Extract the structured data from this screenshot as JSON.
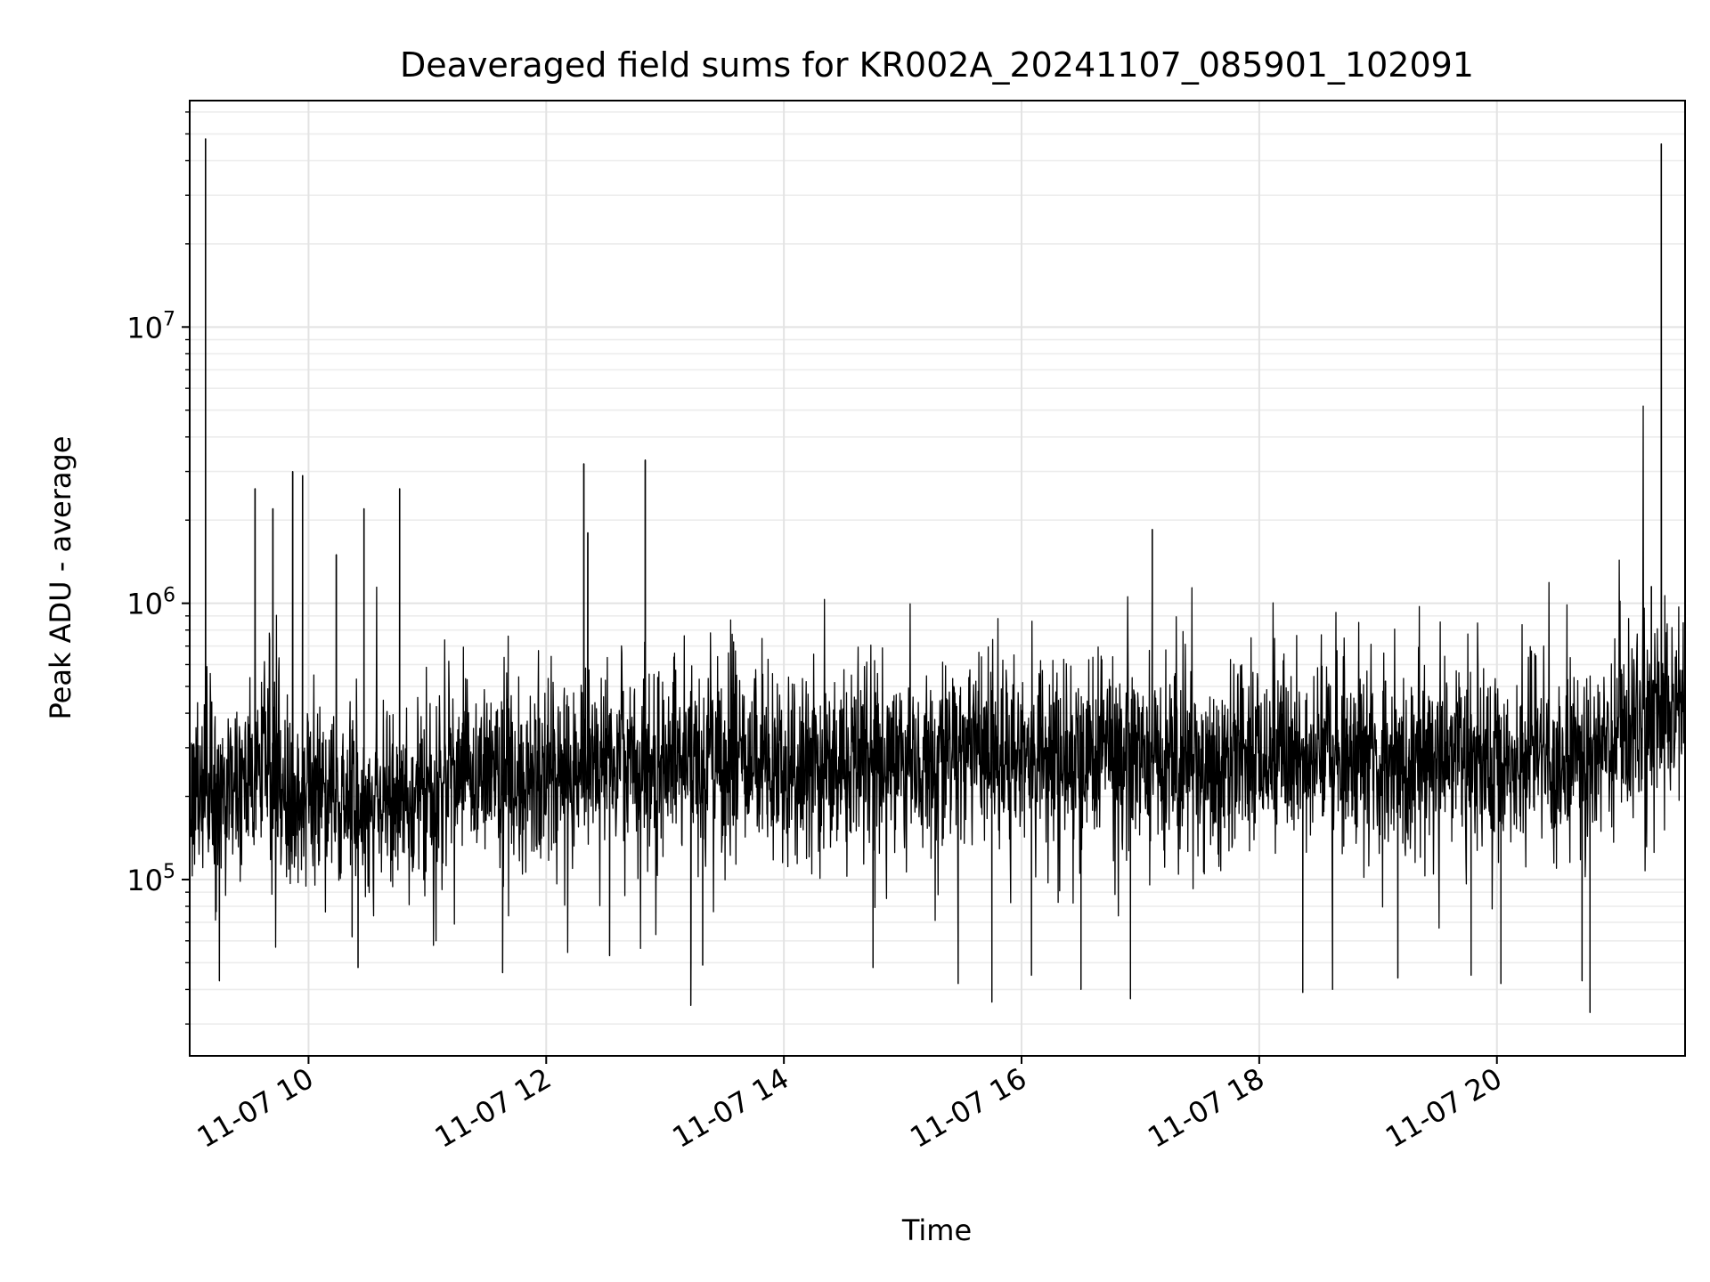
{
  "chart_data": {
    "type": "line",
    "title": "Deaveraged field sums for KR002A_20241107_085901_102091",
    "xlabel": "Time",
    "ylabel": "Peak ADU - average",
    "y_scale": "log",
    "grid": "on (major and minor)",
    "line_color": "#000000",
    "xlim": [
      "2024-11-07 09:00",
      "2024-11-07 21:35"
    ],
    "ylim": [
      23000,
      66000000
    ],
    "x_ticks": [
      {
        "value": "2024-11-07 10:00",
        "label": "11-07 10"
      },
      {
        "value": "2024-11-07 12:00",
        "label": "11-07 12"
      },
      {
        "value": "2024-11-07 14:00",
        "label": "11-07 14"
      },
      {
        "value": "2024-11-07 16:00",
        "label": "11-07 16"
      },
      {
        "value": "2024-11-07 18:00",
        "label": "11-07 18"
      },
      {
        "value": "2024-11-07 20:00",
        "label": "11-07 20"
      }
    ],
    "y_ticks": [
      {
        "value": 100000,
        "base": "10",
        "exp": "5"
      },
      {
        "value": 1000000,
        "base": "10",
        "exp": "6"
      },
      {
        "value": 10000000,
        "base": "10",
        "exp": "7"
      }
    ],
    "baseline": {
      "x": [
        "2024-11-07 09:00",
        "2024-11-07 09:30",
        "2024-11-07 10:00",
        "2024-11-07 10:30",
        "2024-11-07 11:00",
        "2024-11-07 12:00",
        "2024-11-07 13:00",
        "2024-11-07 14:00",
        "2024-11-07 16:00",
        "2024-11-07 18:00",
        "2024-11-07 20:00",
        "2024-11-07 21:00",
        "2024-11-07 21:35"
      ],
      "y": [
        200000,
        230000,
        200000,
        180000,
        220000,
        250000,
        270000,
        260000,
        270000,
        280000,
        270000,
        300000,
        480000
      ]
    },
    "spikes": [
      {
        "x": "2024-11-07 09:08",
        "y": 48000000
      },
      {
        "x": "2024-11-07 09:33",
        "y": 2600000
      },
      {
        "x": "2024-11-07 09:42",
        "y": 2200000
      },
      {
        "x": "2024-11-07 09:52",
        "y": 3000000
      },
      {
        "x": "2024-11-07 09:57",
        "y": 2900000
      },
      {
        "x": "2024-11-07 10:14",
        "y": 1500000
      },
      {
        "x": "2024-11-07 10:28",
        "y": 2200000
      },
      {
        "x": "2024-11-07 10:46",
        "y": 2600000
      },
      {
        "x": "2024-11-07 12:19",
        "y": 3200000
      },
      {
        "x": "2024-11-07 12:21",
        "y": 1800000
      },
      {
        "x": "2024-11-07 12:50",
        "y": 3300000
      },
      {
        "x": "2024-11-07 17:06",
        "y": 1850000
      },
      {
        "x": "2024-11-07 21:18",
        "y": 1150000
      },
      {
        "x": "2024-11-07 21:23",
        "y": 46000000
      }
    ],
    "dips": [
      {
        "x": "2024-11-07 09:15",
        "y": 43000
      },
      {
        "x": "2024-11-07 10:22",
        "y": 62000
      },
      {
        "x": "2024-11-07 10:25",
        "y": 48000
      },
      {
        "x": "2024-11-07 11:38",
        "y": 46000
      },
      {
        "x": "2024-11-07 12:32",
        "y": 53000
      },
      {
        "x": "2024-11-07 13:13",
        "y": 35000
      },
      {
        "x": "2024-11-07 13:19",
        "y": 49000
      },
      {
        "x": "2024-11-07 14:45",
        "y": 48000
      },
      {
        "x": "2024-11-07 15:28",
        "y": 42000
      },
      {
        "x": "2024-11-07 15:45",
        "y": 36000
      },
      {
        "x": "2024-11-07 16:05",
        "y": 45000
      },
      {
        "x": "2024-11-07 16:30",
        "y": 40000
      },
      {
        "x": "2024-11-07 16:55",
        "y": 37000
      },
      {
        "x": "2024-11-07 18:22",
        "y": 39000
      },
      {
        "x": "2024-11-07 18:37",
        "y": 40000
      },
      {
        "x": "2024-11-07 19:10",
        "y": 44000
      },
      {
        "x": "2024-11-07 19:47",
        "y": 45000
      },
      {
        "x": "2024-11-07 20:02",
        "y": 42000
      },
      {
        "x": "2024-11-07 20:43",
        "y": 43000
      },
      {
        "x": "2024-11-07 20:47",
        "y": 33000
      }
    ]
  }
}
